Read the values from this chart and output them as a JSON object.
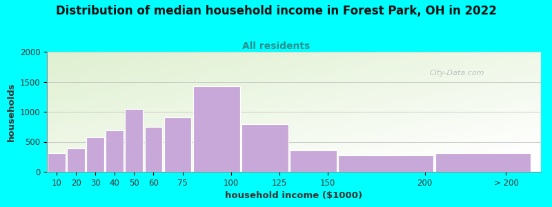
{
  "title": "Distribution of median household income in Forest Park, OH in 2022",
  "subtitle": "All residents",
  "xlabel": "household income ($1000)",
  "ylabel": "households",
  "background_color": "#00FFFF",
  "bar_color": "#C8A8D8",
  "bar_edge_color": "#ffffff",
  "title_fontsize": 12,
  "title_color": "#111111",
  "subtitle_fontsize": 10,
  "subtitle_color": "#2a9090",
  "label_fontsize": 9.5,
  "label_color": "#333333",
  "tick_fontsize": 8.5,
  "ylim": [
    0,
    2000
  ],
  "yticks": [
    0,
    500,
    1000,
    1500,
    2000
  ],
  "values": [
    310,
    390,
    580,
    690,
    1050,
    750,
    910,
    1430,
    790,
    360,
    275,
    305
  ],
  "bar_widths": [
    10,
    10,
    10,
    10,
    10,
    10,
    15,
    25,
    25,
    25,
    50,
    50
  ],
  "bar_lefts": [
    5,
    15,
    25,
    35,
    45,
    55,
    65,
    80,
    105,
    130,
    155,
    205
  ],
  "xtick_positions": [
    10,
    20,
    30,
    40,
    50,
    60,
    75,
    100,
    125,
    150,
    200,
    242
  ],
  "xtick_labels": [
    "10",
    "20",
    "30",
    "40",
    "50",
    "60",
    "75",
    "100",
    "125",
    "150",
    "200",
    "> 200"
  ],
  "xlim": [
    5,
    260
  ],
  "watermark": "City-Data.com",
  "gradient_top_left": "#dff0d0",
  "gradient_bottom_right": "#f8fff8"
}
